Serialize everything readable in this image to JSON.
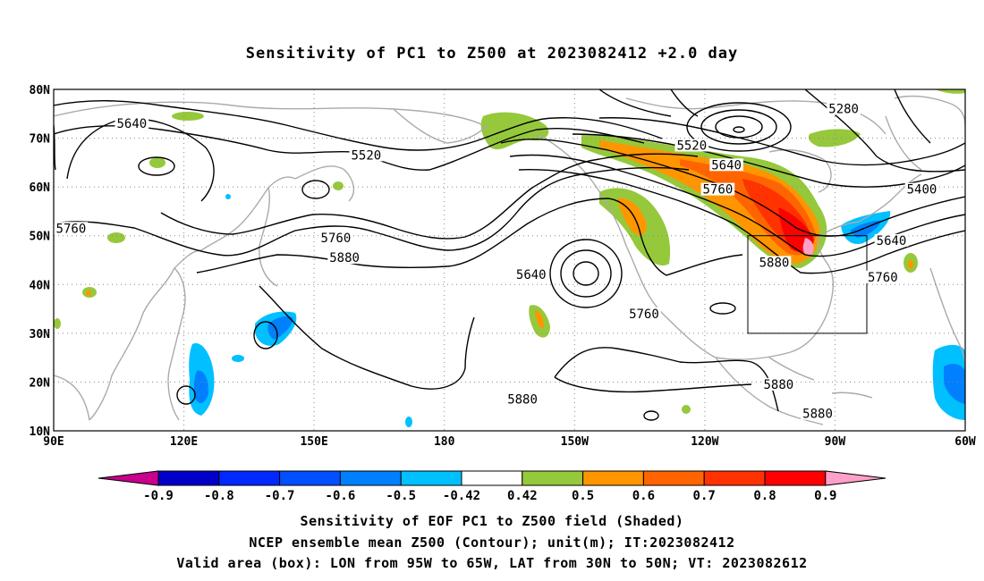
{
  "title": "Sensitivity of PC1 to Z500 at 2023082412 +2.0 day",
  "map": {
    "lat_labels": [
      "80N",
      "70N",
      "60N",
      "50N",
      "40N",
      "30N",
      "20N",
      "10N"
    ],
    "lon_labels": [
      "90E",
      "120E",
      "150E",
      "180",
      "150W",
      "120W",
      "90W",
      "60W"
    ],
    "extent": {
      "lon_min": 90,
      "lon_max": 300,
      "lat_min": 10,
      "lat_max": 80
    },
    "grid": "dotted",
    "coastline_color": "#aaaaaa",
    "contour_color": "#000000"
  },
  "contour_labels": [
    {
      "text": "5280",
      "lon": 272,
      "lat": 75.5
    },
    {
      "text": "5640",
      "lon": 108,
      "lat": 72.5
    },
    {
      "text": "5520",
      "lon": 162,
      "lat": 66
    },
    {
      "text": "5520",
      "lon": 237,
      "lat": 68
    },
    {
      "text": "5640",
      "lon": 245,
      "lat": 64
    },
    {
      "text": "5760",
      "lon": 243,
      "lat": 59
    },
    {
      "text": "5400",
      "lon": 290,
      "lat": 59
    },
    {
      "text": "5760",
      "lon": 94,
      "lat": 51
    },
    {
      "text": "5760",
      "lon": 155,
      "lat": 49
    },
    {
      "text": "5880",
      "lon": 157,
      "lat": 45
    },
    {
      "text": "5640",
      "lon": 200,
      "lat": 41.5
    },
    {
      "text": "5880",
      "lon": 256,
      "lat": 44
    },
    {
      "text": "5640",
      "lon": 283,
      "lat": 48.5
    },
    {
      "text": "5760",
      "lon": 281,
      "lat": 41
    },
    {
      "text": "5760",
      "lon": 226,
      "lat": 33.5
    },
    {
      "text": "5880",
      "lon": 198,
      "lat": 16
    },
    {
      "text": "5880",
      "lon": 257,
      "lat": 19
    },
    {
      "text": "5880",
      "lon": 266,
      "lat": 13
    }
  ],
  "valid_box": {
    "lon_from": "95W",
    "lon_to": "65W",
    "lat_from": "30N",
    "lat_to": "50N"
  },
  "colorbar": {
    "colors": [
      "#c8008c",
      "#0000c8",
      "#0028ff",
      "#0050ff",
      "#0080ff",
      "#00c0ff",
      "#ffffff",
      "#96c83c",
      "#ff9600",
      "#ff6400",
      "#ff3200",
      "#ff0000",
      "#ffa0c8"
    ],
    "labels": [
      "-0.9",
      "-0.8",
      "-0.7",
      "-0.6",
      "-0.5",
      "-0.42",
      "0.42",
      "0.5",
      "0.6",
      "0.7",
      "0.8",
      "0.9"
    ]
  },
  "captions": [
    "Sensitivity of EOF PC1 to Z500 field (Shaded)",
    "NCEP ensemble mean Z500 (Contour); unit(m); IT:2023082412",
    "Valid area (box): LON from 95W to 65W, LAT from 30N to 50N; VT: 2023082612"
  ]
}
